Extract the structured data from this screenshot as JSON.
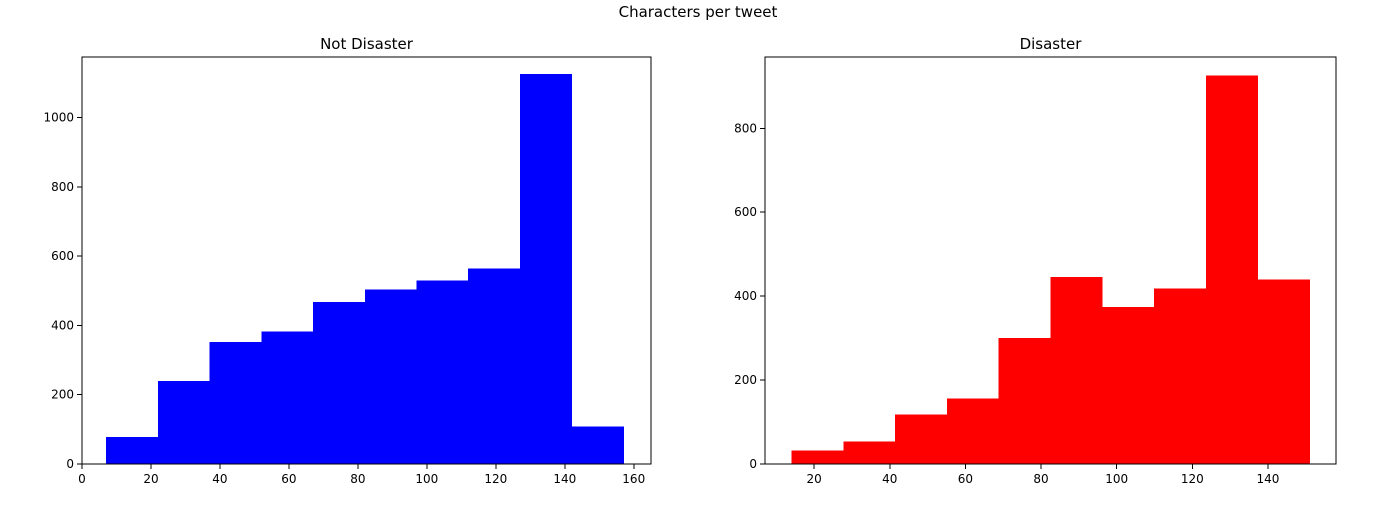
{
  "figure": {
    "suptitle": "Characters per tweet"
  },
  "chart_data": [
    {
      "type": "bar",
      "title": "Not Disaster",
      "xlabel": "",
      "ylabel": "",
      "color": "#0000ff",
      "grid": false,
      "xlim": [
        0,
        165
      ],
      "ylim": [
        0,
        1175
      ],
      "xticks": [
        0,
        20,
        40,
        60,
        80,
        100,
        120,
        140,
        160
      ],
      "yticks": [
        0,
        200,
        400,
        600,
        800,
        1000
      ],
      "bin_edges": [
        7,
        22,
        37,
        52,
        67,
        82,
        97,
        112,
        127,
        142,
        157
      ],
      "values": [
        78,
        240,
        352,
        383,
        468,
        504,
        530,
        564,
        1126,
        108
      ]
    },
    {
      "type": "bar",
      "title": "Disaster",
      "xlabel": "",
      "ylabel": "",
      "color": "#ff0000",
      "grid": false,
      "xlim": [
        7,
        158
      ],
      "ylim": [
        0,
        970
      ],
      "xticks": [
        20,
        40,
        60,
        80,
        100,
        120,
        140
      ],
      "yticks": [
        0,
        200,
        400,
        600,
        800
      ],
      "bin_edges": [
        14,
        27.7,
        41.4,
        55.1,
        68.8,
        82.5,
        96.2,
        109.9,
        123.6,
        137.3,
        151
      ],
      "values": [
        32,
        54,
        118,
        156,
        300,
        446,
        374,
        418,
        926,
        440
      ]
    }
  ]
}
